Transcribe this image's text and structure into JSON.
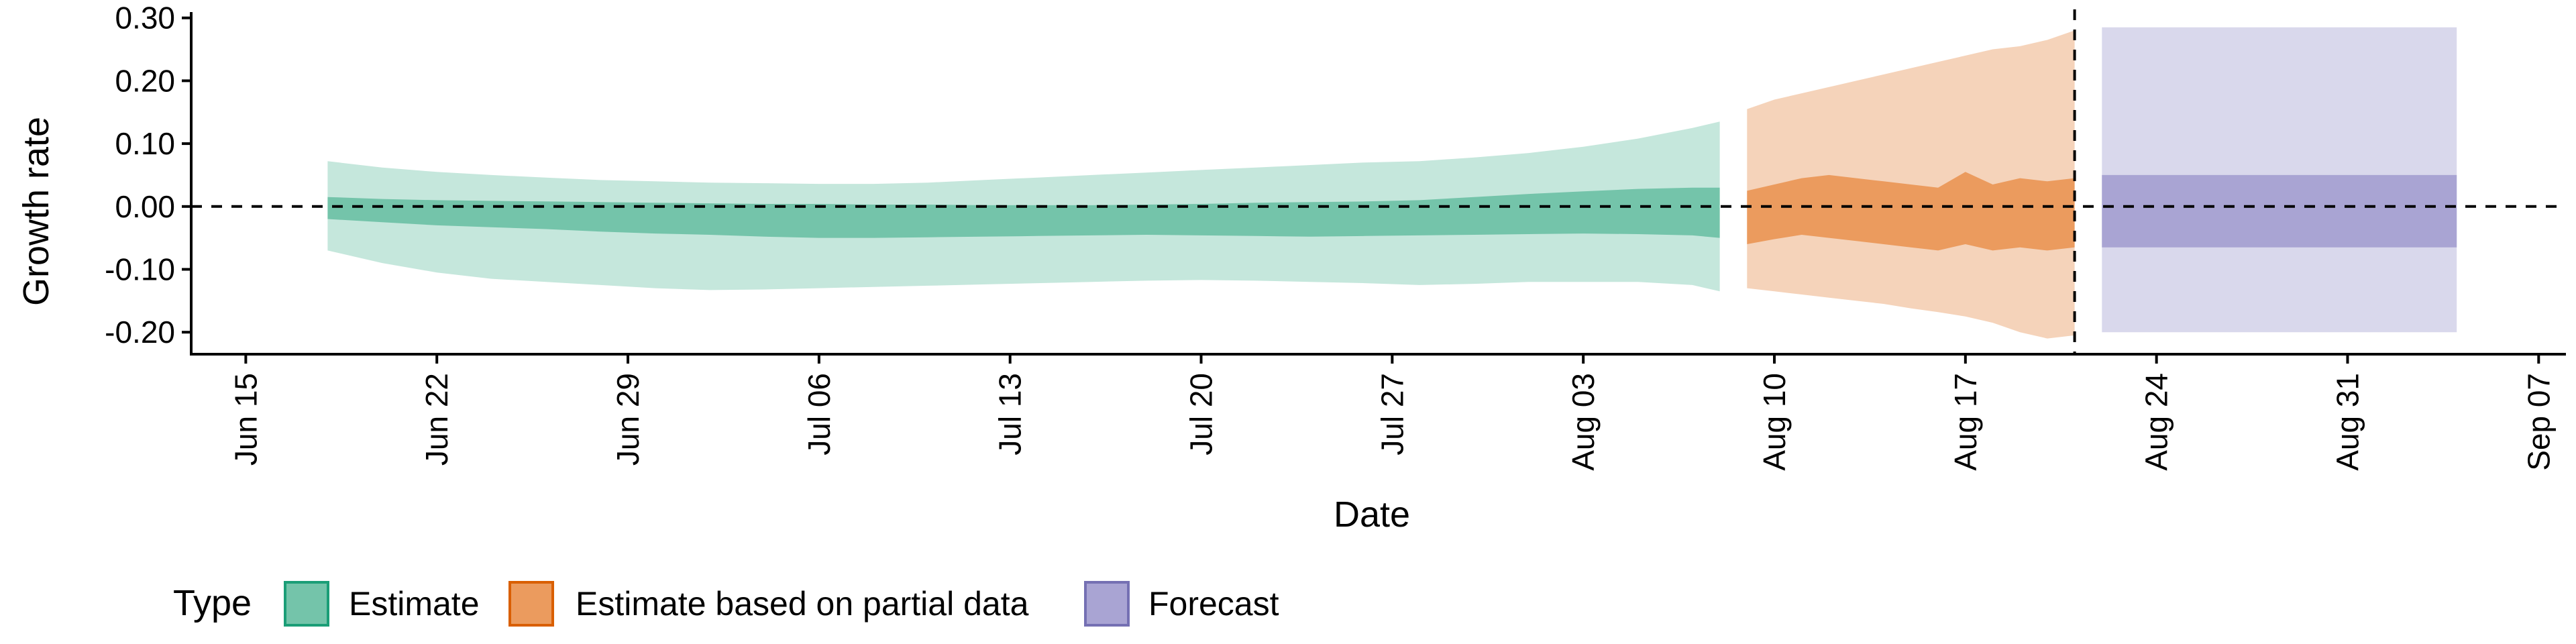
{
  "chart_data": {
    "type": "area",
    "xlabel": "Date",
    "ylabel": "Growth rate",
    "ylim": [
      -0.235,
      0.305
    ],
    "xlim": [
      "2020-06-13",
      "2020-09-08"
    ],
    "grid": false,
    "yticks": [
      -0.2,
      -0.1,
      0.0,
      0.1,
      0.2,
      0.3
    ],
    "ytick_labels": [
      "-0.20",
      "-0.10",
      "0.00",
      "0.10",
      "0.20",
      "0.30"
    ],
    "xticks": [
      "2020-06-15",
      "2020-06-22",
      "2020-06-29",
      "2020-07-06",
      "2020-07-13",
      "2020-07-20",
      "2020-07-27",
      "2020-08-03",
      "2020-08-10",
      "2020-08-17",
      "2020-08-24",
      "2020-08-31",
      "2020-09-07"
    ],
    "xtick_labels": [
      "Jun 15",
      "Jun 22",
      "Jun 29",
      "Jul 06",
      "Jul 13",
      "Jul 20",
      "Jul 27",
      "Aug 03",
      "Aug 10",
      "Aug 17",
      "Aug 24",
      "Aug 31",
      "Sep 07"
    ],
    "reference_lines": {
      "horizontal_y": 0.0,
      "vertical_x": "2020-08-21",
      "style": "dashed"
    },
    "legend": {
      "title": "Type",
      "position": "bottom-left",
      "entries": [
        {
          "label": "Estimate",
          "fill": "#74c4aa",
          "stroke": "#1b9e77"
        },
        {
          "label": "Estimate based on partial data",
          "fill": "#eb9b5e",
          "stroke": "#d95f02"
        },
        {
          "label": "Forecast",
          "fill": "#a9a4d3",
          "stroke": "#7570b3"
        }
      ]
    },
    "series": [
      {
        "name": "Estimate",
        "color_inner": "#74c4aa",
        "color_outer": "#c5e7dc",
        "x": [
          "2020-06-18",
          "2020-06-20",
          "2020-06-22",
          "2020-06-24",
          "2020-06-26",
          "2020-06-28",
          "2020-06-30",
          "2020-07-02",
          "2020-07-04",
          "2020-07-06",
          "2020-07-08",
          "2020-07-10",
          "2020-07-12",
          "2020-07-14",
          "2020-07-16",
          "2020-07-18",
          "2020-07-20",
          "2020-07-22",
          "2020-07-24",
          "2020-07-26",
          "2020-07-28",
          "2020-07-30",
          "2020-08-01",
          "2020-08-03",
          "2020-08-05",
          "2020-08-07",
          "2020-08-08"
        ],
        "lower_outer": [
          -0.07,
          -0.09,
          -0.105,
          -0.115,
          -0.12,
          -0.125,
          -0.13,
          -0.133,
          -0.132,
          -0.13,
          -0.128,
          -0.126,
          -0.124,
          -0.122,
          -0.12,
          -0.118,
          -0.117,
          -0.118,
          -0.12,
          -0.122,
          -0.125,
          -0.123,
          -0.12,
          -0.12,
          -0.12,
          -0.125,
          -0.135
        ],
        "lower_inner": [
          -0.02,
          -0.025,
          -0.03,
          -0.033,
          -0.036,
          -0.04,
          -0.043,
          -0.045,
          -0.048,
          -0.05,
          -0.05,
          -0.049,
          -0.048,
          -0.047,
          -0.046,
          -0.045,
          -0.046,
          -0.047,
          -0.048,
          -0.047,
          -0.046,
          -0.045,
          -0.044,
          -0.043,
          -0.044,
          -0.046,
          -0.05
        ],
        "upper_inner": [
          0.015,
          0.012,
          0.01,
          0.009,
          0.008,
          0.007,
          0.006,
          0.005,
          0.004,
          0.004,
          0.003,
          0.003,
          0.002,
          0.002,
          0.002,
          0.003,
          0.004,
          0.006,
          0.007,
          0.008,
          0.01,
          0.015,
          0.02,
          0.024,
          0.028,
          0.03,
          0.03
        ],
        "upper_outer": [
          0.072,
          0.062,
          0.055,
          0.05,
          0.046,
          0.042,
          0.04,
          0.038,
          0.037,
          0.036,
          0.036,
          0.038,
          0.042,
          0.046,
          0.05,
          0.054,
          0.058,
          0.062,
          0.066,
          0.07,
          0.072,
          0.078,
          0.085,
          0.095,
          0.108,
          0.125,
          0.135
        ]
      },
      {
        "name": "Estimate based on partial data",
        "color_inner": "#eb9b5e",
        "color_outer": "#f5d3ba",
        "x": [
          "2020-08-09",
          "2020-08-10",
          "2020-08-11",
          "2020-08-12",
          "2020-08-13",
          "2020-08-14",
          "2020-08-15",
          "2020-08-16",
          "2020-08-17",
          "2020-08-18",
          "2020-08-19",
          "2020-08-20",
          "2020-08-21"
        ],
        "lower_outer": [
          -0.13,
          -0.135,
          -0.14,
          -0.145,
          -0.15,
          -0.155,
          -0.162,
          -0.168,
          -0.175,
          -0.185,
          -0.2,
          -0.21,
          -0.205
        ],
        "lower_inner": [
          -0.06,
          -0.052,
          -0.045,
          -0.05,
          -0.055,
          -0.06,
          -0.065,
          -0.07,
          -0.06,
          -0.07,
          -0.065,
          -0.07,
          -0.065
        ],
        "upper_inner": [
          0.025,
          0.035,
          0.045,
          0.05,
          0.045,
          0.04,
          0.035,
          0.03,
          0.055,
          0.035,
          0.045,
          0.04,
          0.045
        ],
        "upper_outer": [
          0.155,
          0.17,
          0.18,
          0.19,
          0.2,
          0.21,
          0.22,
          0.23,
          0.24,
          0.25,
          0.255,
          0.265,
          0.28
        ]
      },
      {
        "name": "Forecast",
        "color_inner": "#a9a4d3",
        "color_outer": "#d9d8ec",
        "x": [
          "2020-08-22",
          "2020-09-04"
        ],
        "lower_outer": [
          -0.2,
          -0.2
        ],
        "lower_inner": [
          -0.065,
          -0.065
        ],
        "upper_inner": [
          0.05,
          0.05
        ],
        "upper_outer": [
          0.285,
          0.285
        ]
      }
    ]
  }
}
